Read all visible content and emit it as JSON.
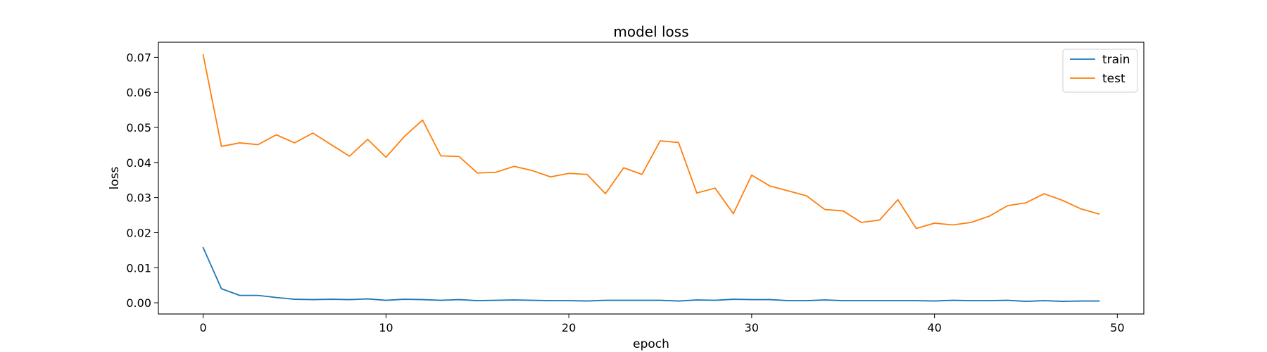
{
  "chart_data": {
    "type": "line",
    "title": "model loss",
    "xlabel": "epoch",
    "ylabel": "loss",
    "xlim": [
      -2.45,
      51.45
    ],
    "ylim": [
      -0.0032,
      0.0743
    ],
    "xticks": [
      0,
      10,
      20,
      30,
      40,
      50
    ],
    "xtick_labels": [
      "0",
      "10",
      "20",
      "30",
      "40",
      "50"
    ],
    "yticks": [
      0.0,
      0.01,
      0.02,
      0.03,
      0.04,
      0.05,
      0.06,
      0.07
    ],
    "ytick_labels": [
      "0.00",
      "0.01",
      "0.02",
      "0.03",
      "0.04",
      "0.05",
      "0.06",
      "0.07"
    ],
    "grid": false,
    "legend_position": "top-right",
    "x": [
      0,
      1,
      2,
      3,
      4,
      5,
      6,
      7,
      8,
      9,
      10,
      11,
      12,
      13,
      14,
      15,
      16,
      17,
      18,
      19,
      20,
      21,
      22,
      23,
      24,
      25,
      26,
      27,
      28,
      29,
      30,
      31,
      32,
      33,
      34,
      35,
      36,
      37,
      38,
      39,
      40,
      41,
      42,
      43,
      44,
      45,
      46,
      47,
      48,
      49
    ],
    "series": [
      {
        "name": "train",
        "color": "#1f77b4",
        "values": [
          0.0157,
          0.004,
          0.0021,
          0.0021,
          0.0015,
          0.001,
          0.0009,
          0.001,
          0.0009,
          0.0011,
          0.0007,
          0.001,
          0.0009,
          0.0007,
          0.0009,
          0.0006,
          0.0007,
          0.0008,
          0.0007,
          0.0006,
          0.0006,
          0.0005,
          0.0007,
          0.0007,
          0.0007,
          0.0007,
          0.0005,
          0.0008,
          0.0007,
          0.001,
          0.0009,
          0.0009,
          0.0006,
          0.0006,
          0.0008,
          0.0006,
          0.0006,
          0.0006,
          0.0006,
          0.0006,
          0.0005,
          0.0007,
          0.0006,
          0.0006,
          0.0007,
          0.0004,
          0.0006,
          0.0004,
          0.0005,
          0.0005
        ]
      },
      {
        "name": "test",
        "color": "#ff7f0e",
        "values": [
          0.0707,
          0.0446,
          0.0456,
          0.0451,
          0.0479,
          0.0456,
          0.0484,
          0.0451,
          0.0418,
          0.0466,
          0.0415,
          0.0474,
          0.0521,
          0.0419,
          0.0417,
          0.037,
          0.0372,
          0.0389,
          0.0377,
          0.0359,
          0.0369,
          0.0366,
          0.0311,
          0.0385,
          0.0366,
          0.0462,
          0.0457,
          0.0313,
          0.0327,
          0.0254,
          0.0364,
          0.0333,
          0.0319,
          0.0305,
          0.0266,
          0.0262,
          0.0229,
          0.0236,
          0.0294,
          0.0212,
          0.0227,
          0.0222,
          0.0229,
          0.0247,
          0.0277,
          0.0285,
          0.0311,
          0.0292,
          0.0268,
          0.0253
        ]
      }
    ]
  }
}
